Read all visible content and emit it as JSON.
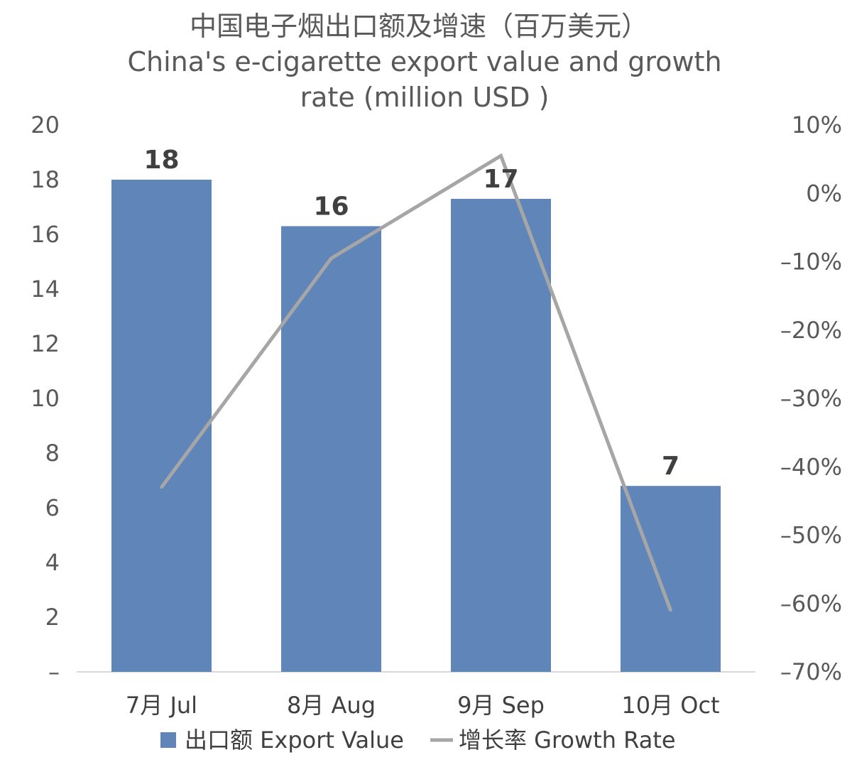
{
  "chart_data": {
    "type": "bar",
    "title": "中国电子烟出口额及增速（百万美元）",
    "subtitle_lines": [
      "China's e-cigarette export value and growth",
      "rate (million USD )"
    ],
    "categories": [
      "7月 Jul",
      "8月 Aug",
      "9月 Sep",
      "10月 Oct"
    ],
    "series": [
      {
        "name": "出口额 Export Value",
        "type": "bar",
        "axis": "left",
        "color": "#6085B9",
        "values": [
          18.0,
          16.3,
          17.3,
          6.8
        ],
        "data_labels": [
          "18",
          "16",
          "17",
          "7"
        ]
      },
      {
        "name": "增长率 Growth Rate",
        "type": "line",
        "axis": "right",
        "color": "#A6A6A6",
        "values": [
          -0.43,
          -0.095,
          0.055,
          -0.61
        ]
      }
    ],
    "y_left": {
      "min": 0,
      "max": 20,
      "ticks": [
        0,
        2,
        4,
        6,
        8,
        10,
        12,
        14,
        16,
        18,
        20
      ],
      "tick_labels": [
        "–",
        "2",
        "4",
        "6",
        "8",
        "10",
        "12",
        "14",
        "16",
        "18",
        "20"
      ]
    },
    "y_right": {
      "min": -0.7,
      "max": 0.1,
      "ticks": [
        0.1,
        0,
        -0.1,
        -0.2,
        -0.3,
        -0.4,
        -0.5,
        -0.6,
        -0.7
      ],
      "tick_labels": [
        "10%",
        "0%",
        "–10%",
        "–20%",
        "–30%",
        "–40%",
        "–50%",
        "–60%",
        "–70%"
      ]
    },
    "grid": false,
    "legend": "bottom"
  }
}
